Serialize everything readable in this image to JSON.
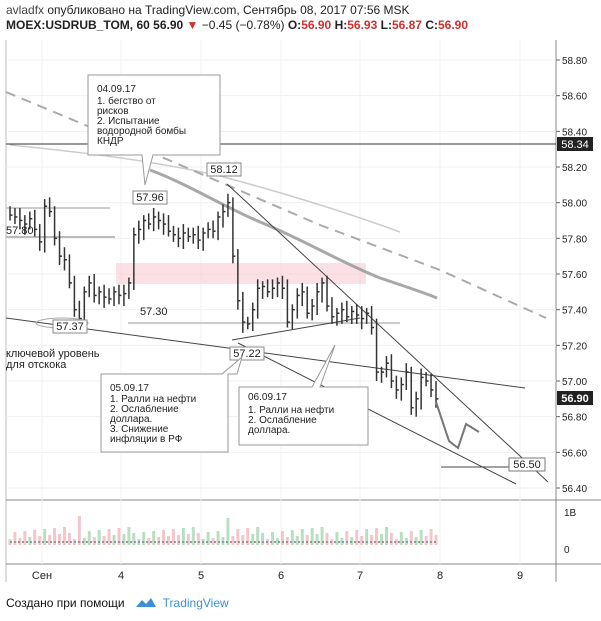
{
  "header": {
    "author": "avladfx",
    "published": "опубликовано на TradingView.com, Сентябрь 08, 2017 07:56 MSK",
    "symbol": "MOEX:USDRUB_TOM, 60",
    "last": "56.90",
    "change": "−0.45 (−0.78%)",
    "o_label": "O:",
    "o": "56.90",
    "h_label": "H:",
    "h": "56.93",
    "l_label": "L:",
    "l": "56.87",
    "c_label": "C:",
    "c": "56.90"
  },
  "footer": {
    "created": "Создано при помощи",
    "brand": "TradingView"
  },
  "chart_data": {
    "type": "candlestick",
    "title": "MOEX:USDRUB_TOM, 60",
    "x_ticks": [
      "Сен",
      "4",
      "5",
      "6",
      "7",
      "8",
      "9"
    ],
    "y_ticks": [
      "56.40",
      "56.60",
      "56.80",
      "57.00",
      "57.20",
      "57.40",
      "57.60",
      "57.80",
      "58.00",
      "58.20",
      "58.40",
      "58.60",
      "58.80"
    ],
    "ylim": [
      56.35,
      58.88
    ],
    "volume_ticks": [
      "1B",
      "0"
    ],
    "price_labels": {
      "current": "56.90",
      "top_line": "58.34",
      "target": "56.50"
    },
    "closes": [
      57.93,
      57.92,
      57.9,
      57.88,
      57.91,
      57.85,
      57.78,
      57.98,
      57.95,
      57.8,
      57.7,
      57.68,
      57.55,
      57.4,
      57.35,
      57.5,
      57.55,
      57.48,
      57.5,
      57.47,
      57.46,
      57.5,
      57.48,
      57.49,
      57.55,
      57.82,
      57.85,
      57.9,
      57.88,
      57.92,
      57.9,
      57.88,
      57.84,
      57.82,
      57.8,
      57.83,
      57.81,
      57.82,
      57.79,
      57.83,
      57.85,
      57.84,
      57.92,
      57.95,
      58.0,
      57.7,
      57.45,
      57.33,
      57.32,
      57.4,
      57.52,
      57.53,
      57.5,
      57.52,
      57.55,
      57.52,
      57.33,
      57.4,
      57.48,
      57.5,
      57.38,
      57.42,
      57.5,
      57.55,
      57.42,
      57.36,
      57.38,
      57.4,
      57.36,
      57.39,
      57.37,
      57.35,
      57.38,
      57.3,
      57.05,
      57.05,
      57.1,
      57.0,
      56.95,
      56.98,
      57.05,
      56.85,
      56.9,
      57.02,
      57.0,
      56.95,
      56.9
    ],
    "annotations": [
      {
        "label": "57.37"
      },
      {
        "label": "57.22"
      },
      {
        "label": "57.96"
      },
      {
        "label": "58.12"
      },
      {
        "label": "57.30"
      },
      {
        "label": "57.80"
      },
      {
        "label": "ключевой уровень для отскока"
      }
    ],
    "notes": [
      {
        "date": "04.09.17",
        "lines": [
          "1. бегство от",
          "рисков",
          "2. Испытание",
          "водородной бомбы",
          "КНДР"
        ]
      },
      {
        "date": "05.09.17",
        "lines": [
          "1. Ралли на нефти",
          "2. Ослабление",
          "доллара.",
          "3. Снижение",
          "инфляции в РФ"
        ]
      },
      {
        "date": "06.09.17",
        "lines": [
          "1. Ралли на нефти",
          "2. Ослабление",
          "доллара."
        ]
      }
    ]
  }
}
